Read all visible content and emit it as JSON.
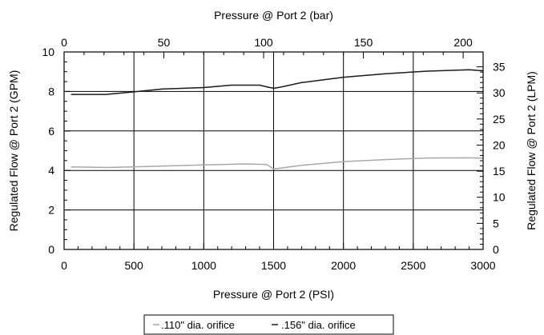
{
  "chart_data": {
    "type": "line",
    "title": "",
    "xlabel": "Pressure @ Port 2 (PSI)",
    "ylabel": "Regulated Flow @ Port 2 (GPM)",
    "x2label": "Pressure @ Port 2 (bar)",
    "y2label": "Regulated Flow @ Port 2 (LPM)",
    "xlim": [
      0,
      3000
    ],
    "ylim": [
      0,
      10
    ],
    "x2lim": [
      0,
      210
    ],
    "y2lim": [
      0,
      37.85
    ],
    "x_ticks": [
      0,
      500,
      1000,
      1500,
      2000,
      2500,
      3000
    ],
    "y_ticks": [
      0,
      2,
      4,
      6,
      8,
      10
    ],
    "x2_ticks": [
      0,
      50,
      100,
      150,
      200
    ],
    "y2_ticks": [
      0,
      5,
      10,
      15,
      20,
      25,
      30,
      35
    ],
    "grid": true,
    "legend_position": "bottom-center",
    "series": [
      {
        "name": ".110\" dia. orifice",
        "color": "#a8a8a8",
        "x": [
          50,
          300,
          600,
          1000,
          1300,
          1450,
          1500,
          1550,
          1700,
          2000,
          2300,
          2600,
          2900,
          3000
        ],
        "y": [
          4.18,
          4.15,
          4.2,
          4.28,
          4.33,
          4.3,
          4.08,
          4.12,
          4.26,
          4.45,
          4.55,
          4.63,
          4.64,
          4.62
        ]
      },
      {
        "name": ".156\" dia. orifice",
        "color": "#1a1a1a",
        "x": [
          50,
          300,
          500,
          700,
          1000,
          1200,
          1400,
          1460,
          1500,
          1550,
          1700,
          2000,
          2300,
          2600,
          2900,
          3000
        ],
        "y": [
          7.85,
          7.85,
          7.98,
          8.12,
          8.2,
          8.32,
          8.32,
          8.22,
          8.16,
          8.22,
          8.45,
          8.72,
          8.9,
          9.03,
          9.1,
          9.05
        ]
      }
    ]
  }
}
